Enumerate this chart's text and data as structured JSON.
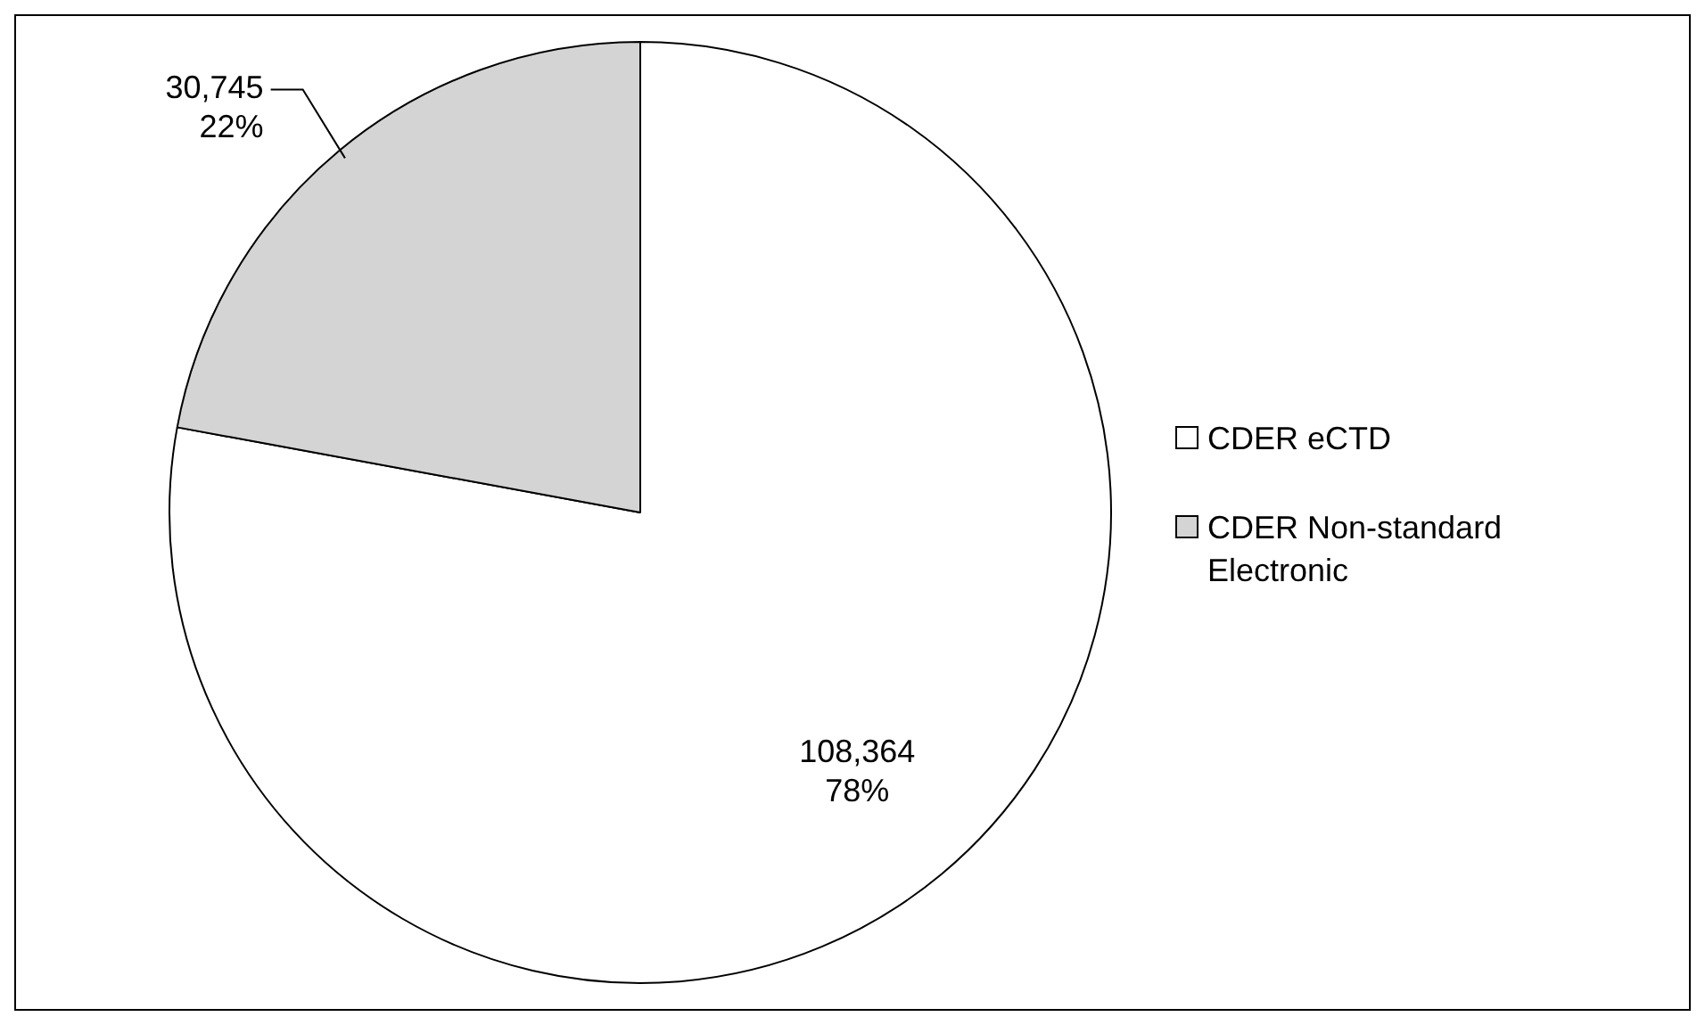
{
  "chart_data": {
    "type": "pie",
    "categories": [
      "CDER eCTD",
      "CDER Non-standard Electronic"
    ],
    "values": [
      108364,
      30745
    ],
    "colors": [
      "#ffffff",
      "#d4d4d4"
    ],
    "value_labels": [
      "108,364\n78%",
      "30,745\n22%"
    ],
    "legend": "right"
  }
}
